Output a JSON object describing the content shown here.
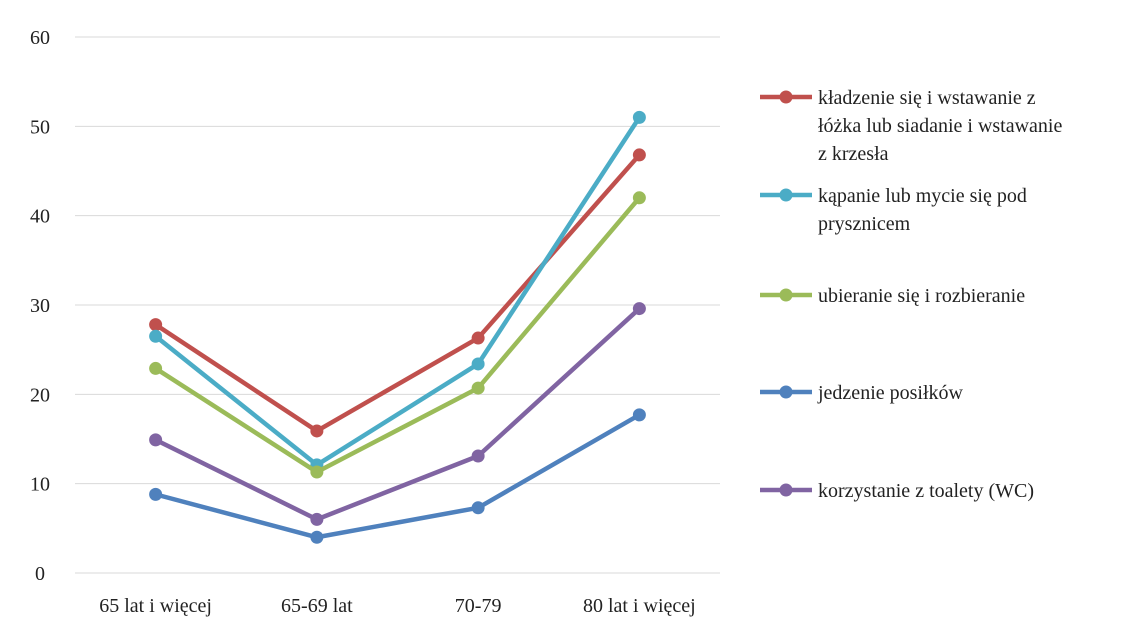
{
  "chart_data": {
    "type": "line",
    "title": "",
    "xlabel": "",
    "ylabel": "",
    "categories": [
      "65 lat i więcej",
      "65-69 lat",
      "70-79",
      "80 lat i więcej"
    ],
    "ylim": [
      0,
      60
    ],
    "yticks": [
      "0",
      "10",
      "20",
      "30",
      "40",
      "50",
      "60"
    ],
    "grid": "horizontal",
    "legend_position": "right",
    "series": [
      {
        "name": "kładzenie się i wstawanie z łóżka lub siadanie i wstawanie z krzesła",
        "name_lines": [
          "kładzenie się i wstawanie z",
          "łóżka lub siadanie i wstawanie",
          "z krzesła"
        ],
        "color": "#c0504d",
        "values": [
          27.8,
          15.9,
          26.3,
          46.8
        ]
      },
      {
        "name": "kąpanie lub mycie się pod prysznicem",
        "name_lines": [
          "kąpanie lub mycie się pod",
          "prysznicem"
        ],
        "color": "#4bacc6",
        "values": [
          26.5,
          12.1,
          23.4,
          51.0
        ]
      },
      {
        "name": "ubieranie się i rozbieranie",
        "name_lines": [
          "ubieranie się i rozbieranie"
        ],
        "color": "#9bbb59",
        "values": [
          22.9,
          11.3,
          20.7,
          42.0
        ]
      },
      {
        "name": "jedzenie posiłków",
        "name_lines": [
          "jedzenie posiłków"
        ],
        "color": "#4f81bd",
        "values": [
          8.8,
          4.0,
          7.3,
          17.7
        ]
      },
      {
        "name": "korzystanie z toalety (WC)",
        "name_lines": [
          "korzystanie z toalety (WC)"
        ],
        "color": "#8064a2",
        "values": [
          14.9,
          6.0,
          13.1,
          29.6
        ]
      }
    ]
  }
}
